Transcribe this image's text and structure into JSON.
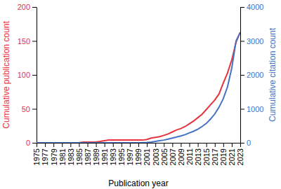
{
  "chart_data": {
    "type": "line",
    "x": [
      1975,
      1976,
      1977,
      1978,
      1979,
      1980,
      1981,
      1982,
      1983,
      1984,
      1985,
      1986,
      1987,
      1988,
      1989,
      1990,
      1991,
      1992,
      1993,
      1994,
      1995,
      1996,
      1997,
      1998,
      1999,
      2000,
      2001,
      2002,
      2003,
      2004,
      2005,
      2006,
      2007,
      2008,
      2009,
      2010,
      2011,
      2012,
      2013,
      2014,
      2015,
      2016,
      2017,
      2018,
      2019,
      2020,
      2021,
      2022,
      2023
    ],
    "series": [
      {
        "color": "#e8333c",
        "values": [
          0,
          0,
          0,
          0,
          0,
          0,
          0,
          0,
          0,
          0,
          0,
          1,
          1,
          1,
          1,
          2,
          3,
          4,
          4,
          4,
          4,
          4,
          4,
          4,
          4,
          4,
          5,
          7,
          8,
          9,
          11,
          13,
          16,
          19,
          21,
          24,
          28,
          32,
          37,
          42,
          49,
          56,
          63,
          72,
          88,
          103,
          122,
          148,
          163
        ]
      },
      {
        "color": "#4472c4",
        "axis": "y2",
        "values": [
          0,
          0,
          0,
          0,
          0,
          0,
          0,
          0,
          0,
          0,
          0,
          0,
          0,
          0,
          0,
          0,
          0,
          0,
          0,
          0,
          0,
          0,
          0,
          0,
          0,
          5,
          10,
          20,
          40,
          60,
          80,
          110,
          140,
          170,
          200,
          240,
          290,
          340,
          400,
          480,
          570,
          700,
          850,
          1050,
          1300,
          1650,
          2200,
          3000,
          3250
        ]
      }
    ],
    "x_label": "Publication year",
    "y_label": "Cumulative publication count",
    "y2_label": "Cumulative citation count",
    "xlim": [
      1975,
      2023
    ],
    "xticks": [
      1975,
      1977,
      1979,
      1981,
      1983,
      1985,
      1987,
      1989,
      1991,
      1993,
      1995,
      1997,
      1999,
      2001,
      2003,
      2005,
      2007,
      2009,
      2011,
      2013,
      2015,
      2017,
      2019,
      2021,
      2023
    ],
    "ylim": [
      0,
      200
    ],
    "yticks": [
      0,
      50,
      100,
      150,
      200
    ],
    "y2lim": [
      0,
      4000
    ],
    "y2ticks": [
      0,
      1000,
      2000,
      3000,
      4000
    ]
  }
}
